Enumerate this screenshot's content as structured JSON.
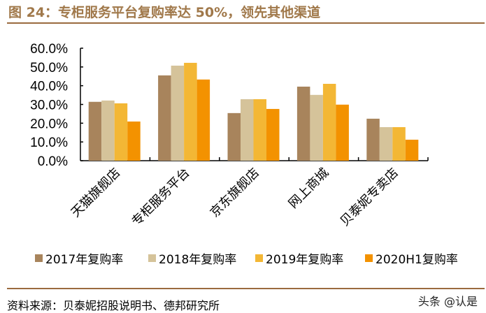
{
  "title": "图 24：专柜服务平台复购率达 50%，领先其他渠道",
  "source": "资料来源：贝泰妮招股说明书、德邦研究所",
  "watermark": "头条 @认是",
  "chart_data": {
    "type": "bar",
    "categories": [
      "天猫旗舰店",
      "专柜服务平台",
      "京东旗舰店",
      "网上商城",
      "贝泰妮专卖店"
    ],
    "series": [
      {
        "name": "2017年复购率",
        "color": "#A8845C",
        "values": [
          31.4,
          45.5,
          25.4,
          39.5,
          22.4
        ]
      },
      {
        "name": "2018年复购率",
        "color": "#D5C39A",
        "values": [
          32.1,
          50.7,
          32.8,
          35.1,
          17.9
        ]
      },
      {
        "name": "2019年复购率",
        "color": "#F3B735",
        "values": [
          30.6,
          52.2,
          32.8,
          41.0,
          17.9
        ]
      },
      {
        "name": "2020H1复购率",
        "color": "#F39200",
        "values": [
          20.9,
          43.3,
          27.6,
          29.9,
          11.2
        ]
      }
    ],
    "yticks": [
      "0.0%",
      "10.0%",
      "20.0%",
      "30.0%",
      "40.0%",
      "50.0%",
      "60.0%"
    ],
    "ylim": [
      0,
      60
    ],
    "grid": false,
    "legend": "bottom"
  }
}
